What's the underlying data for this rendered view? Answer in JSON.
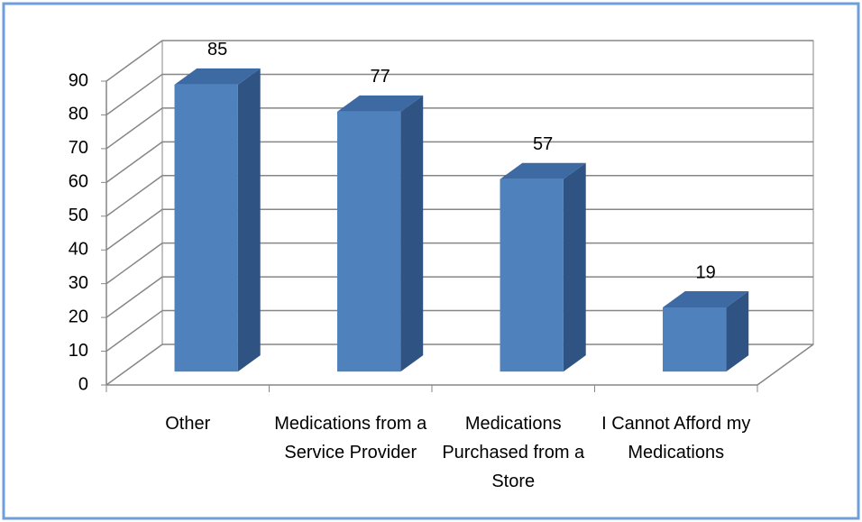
{
  "chart_data": {
    "type": "bar3d",
    "categories": [
      "Other",
      "Medications from a Service Provider",
      "Medications Purchased from a Store",
      "I Cannot Afford my Medications"
    ],
    "values": [
      85,
      77,
      57,
      19
    ],
    "color": "#4f81bd",
    "ylim": [
      0,
      90
    ],
    "yticks": [
      0,
      10,
      20,
      30,
      40,
      50,
      60,
      70,
      80,
      90
    ],
    "grid": true
  }
}
